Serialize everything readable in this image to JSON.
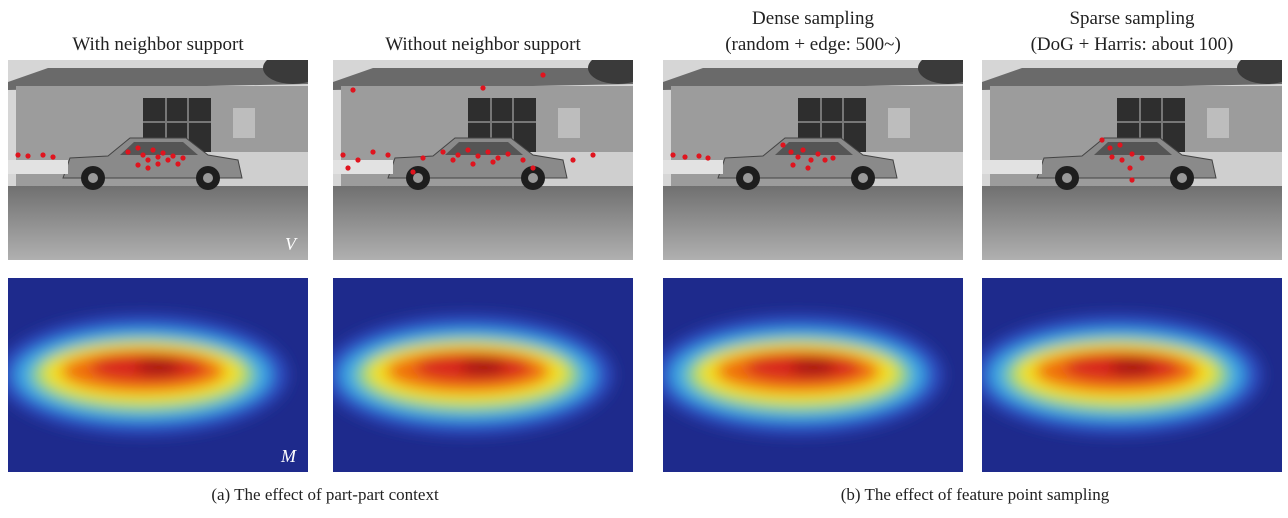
{
  "figure": {
    "panels": [
      {
        "title": [
          "With neighbor support"
        ]
      },
      {
        "title": [
          "Without neighbor support"
        ]
      },
      {
        "title": [
          "Dense sampling",
          "(random + edge: 500~)"
        ]
      },
      {
        "title": [
          "Sparse sampling",
          "(DoG + Harris: about 100)"
        ]
      }
    ],
    "labels": {
      "top": "V",
      "bottom": "M"
    },
    "captions": [
      "(a)  The effect of part-part context",
      "(b)  The effect of feature point sampling"
    ]
  }
}
